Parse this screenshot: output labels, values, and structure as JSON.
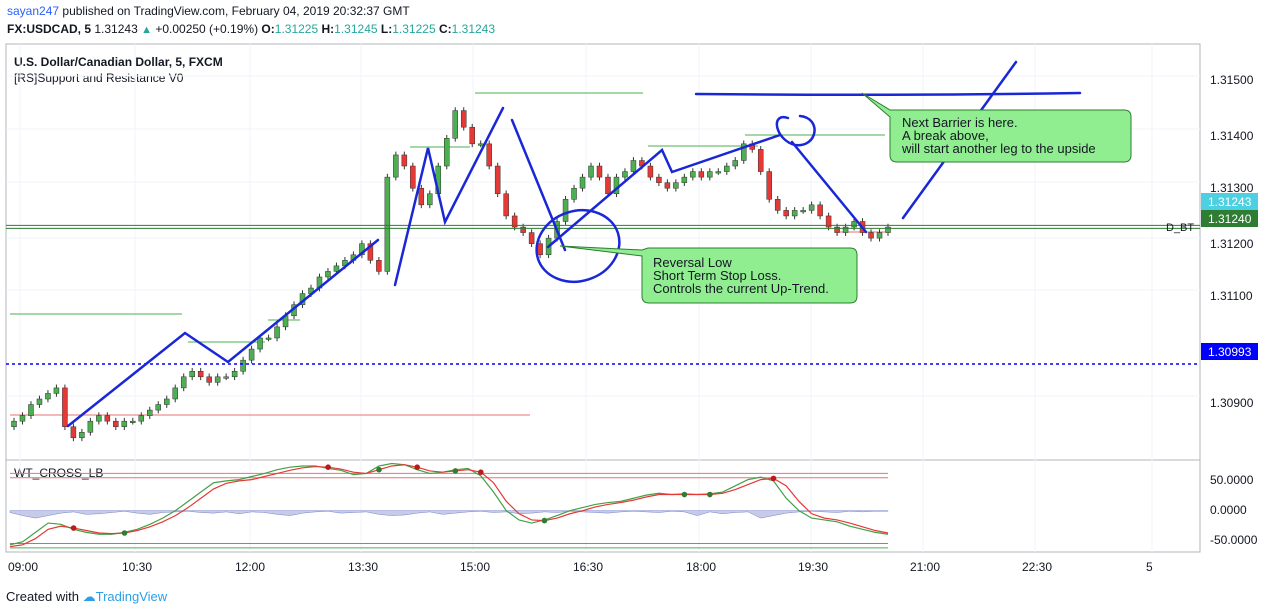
{
  "header": {
    "author": "sayan247",
    "published_text": "published on TradingView.com, February 04, 2019 20:32:37 GMT",
    "symbol": "FX:USDCAD, 5",
    "last": "1.31243",
    "change": "+0.00250 (+0.19%)",
    "o_label": "O:",
    "o_value": "1.31225",
    "h_label": "H:",
    "h_value": "1.31245",
    "l_label": "L:",
    "l_value": "1.31225",
    "c_label": "C:",
    "c_value": "1.31243"
  },
  "legend": {
    "instrument": "U.S. Dollar/Canadian Dollar, 5, FXCM",
    "indicator": "[RS]Support and Resistance V0",
    "oscillator": "WT_CROSS_LB"
  },
  "footer": {
    "created_with": "Created with",
    "brand": "TradingView"
  },
  "annotations": {
    "barrier": [
      "Next Barrier is here.",
      "A break above,",
      "will start another leg to the upside"
    ],
    "reversal": [
      "Reversal Low",
      "Short Term Stop Loss.",
      "Controls the current Up-Trend."
    ],
    "line_label": "D_BT"
  },
  "chart_data": [
    {
      "type": "candlestick",
      "title": "U.S. Dollar/Canadian Dollar, 5, FXCM",
      "x_tick_labels": [
        "09:00",
        "10:30",
        "12:00",
        "13:30",
        "15:00",
        "16:30",
        "18:00",
        "19:30",
        "21:00",
        "22:30",
        "5"
      ],
      "y_tick_labels": [
        "1.31500",
        "1.31400",
        "1.31300",
        "1.31200",
        "1.31100",
        "1.30900"
      ],
      "ylim": [
        1.3082,
        1.3157
      ],
      "price_badges": [
        {
          "value": "1.31243",
          "color": "#4dd0e1"
        },
        {
          "value": "1.31240",
          "color": "#2e7d32"
        },
        {
          "value": "1.30993",
          "color": "#0000ff"
        }
      ],
      "horizontal_lines": [
        {
          "name": "current",
          "value": 1.31243,
          "color": "#2e7d32"
        },
        {
          "name": "dotted",
          "value": 1.30993,
          "color": "#0000ff"
        }
      ],
      "close_series": [
        1.3089,
        1.309,
        1.3092,
        1.3093,
        1.3094,
        1.3095,
        1.3088,
        1.3086,
        1.3087,
        1.3089,
        1.309,
        1.3089,
        1.3088,
        1.3089,
        1.3089,
        1.309,
        1.3091,
        1.3092,
        1.3093,
        1.3095,
        1.3097,
        1.3098,
        1.3097,
        1.3096,
        1.3097,
        1.3097,
        1.3098,
        1.31,
        1.3102,
        1.3104,
        1.3104,
        1.3106,
        1.3108,
        1.311,
        1.3112,
        1.3113,
        1.3115,
        1.3116,
        1.3117,
        1.3118,
        1.3119,
        1.3121,
        1.3118,
        1.3116,
        1.3133,
        1.3137,
        1.3135,
        1.3131,
        1.3128,
        1.313,
        1.3135,
        1.314,
        1.3145,
        1.3142,
        1.3139,
        1.3139,
        1.3135,
        1.313,
        1.3126,
        1.3124,
        1.3123,
        1.3121,
        1.3119,
        1.3122,
        1.3125,
        1.3129,
        1.3131,
        1.3133,
        1.3135,
        1.3133,
        1.313,
        1.3133,
        1.3134,
        1.3136,
        1.3135,
        1.3133,
        1.3132,
        1.3131,
        1.3132,
        1.3133,
        1.3134,
        1.3133,
        1.3134,
        1.3134,
        1.3135,
        1.3136,
        1.3139,
        1.3138,
        1.3134,
        1.3129,
        1.3127,
        1.3126,
        1.3127,
        1.3127,
        1.3128,
        1.3126,
        1.3124,
        1.3123,
        1.3124,
        1.3125,
        1.3123,
        1.3122,
        1.3123,
        1.3124
      ]
    },
    {
      "type": "line",
      "title": "WT_CROSS_LB",
      "y_tick_labels": [
        "50.0000",
        "0.0000",
        "-50.0000"
      ],
      "ylim": [
        -65,
        80
      ],
      "levels": [
        60,
        53,
        -53,
        -60
      ],
      "wt1": [
        -55,
        -50,
        -35,
        -20,
        -22,
        -30,
        -35,
        -38,
        -38,
        -35,
        -30,
        -22,
        -12,
        0,
        15,
        30,
        45,
        48,
        50,
        55,
        60,
        66,
        70,
        72,
        72,
        68,
        65,
        58,
        60,
        72,
        76,
        74,
        66,
        60,
        62,
        66,
        68,
        56,
        30,
        0,
        -15,
        -20,
        -15,
        -8,
        0,
        5,
        10,
        13,
        15,
        20,
        25,
        28,
        26,
        27,
        26,
        27,
        30,
        40,
        50,
        54,
        48,
        20,
        0,
        -12,
        -15,
        -18,
        -25,
        -30,
        -35,
        -38
      ],
      "wt2": [
        -58,
        -55,
        -45,
        -30,
        -25,
        -28,
        -32,
        -36,
        -37,
        -36,
        -32,
        -26,
        -18,
        -8,
        5,
        20,
        35,
        44,
        48,
        50,
        55,
        60,
        65,
        69,
        71,
        70,
        67,
        62,
        60,
        66,
        72,
        74,
        70,
        64,
        62,
        64,
        66,
        62,
        45,
        15,
        -5,
        -15,
        -16,
        -12,
        -5,
        0,
        6,
        10,
        13,
        17,
        22,
        26,
        26,
        26,
        26,
        26,
        28,
        34,
        42,
        50,
        52,
        40,
        15,
        -5,
        -12,
        -15,
        -20,
        -26,
        -32,
        -36
      ],
      "histogram": [
        -3,
        -8,
        -12,
        -8,
        -4,
        -2,
        -6,
        -5,
        -3,
        -1,
        -4,
        -6,
        -3,
        -2,
        -1,
        -3,
        -4,
        -2,
        -5,
        -2,
        -3,
        -6,
        -8,
        -4,
        -2,
        -1,
        -4,
        -3,
        -2,
        -6,
        -8,
        -7,
        -4,
        -2,
        -6,
        -4,
        -2,
        -1,
        -3,
        -2,
        -5,
        -4,
        -2,
        -3,
        -1,
        -2,
        -3,
        -4,
        -2,
        -1,
        -2,
        -3,
        -1,
        -2,
        -8,
        -2,
        -5,
        -3,
        -2,
        -12,
        -8,
        -4,
        -2,
        -1,
        -2,
        -3,
        -1,
        -2,
        -1,
        -1
      ]
    }
  ]
}
